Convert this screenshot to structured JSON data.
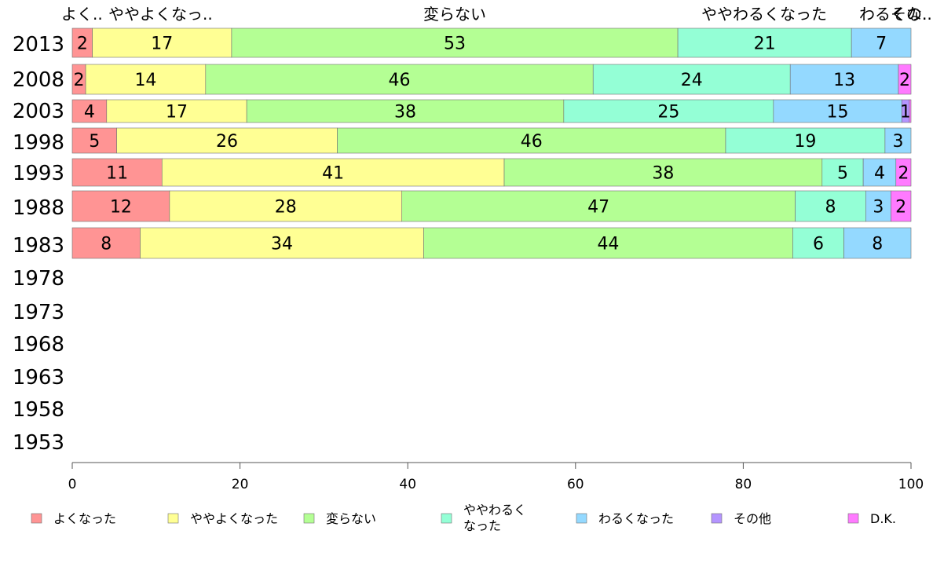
{
  "chart_data": {
    "type": "bar",
    "orientation": "horizontal",
    "stacked": true,
    "years": [
      "2013",
      "2008",
      "2003",
      "1998",
      "1993",
      "1988",
      "1983",
      "1978",
      "1973",
      "1968",
      "1963",
      "1958",
      "1953"
    ],
    "categories": [
      {
        "name": "よくなった",
        "color": "#ff9494"
      },
      {
        "name": "ややよくなった",
        "color": "#ffff94"
      },
      {
        "name": "変らない",
        "color": "#b4ff94"
      },
      {
        "name": "ややわるくなった",
        "color": "#94ffd6"
      },
      {
        "name": "わるくなった",
        "color": "#94d9ff"
      },
      {
        "name": "その他",
        "color": "#b494ff"
      },
      {
        "name": "D.K.",
        "color": "#ff7aff"
      }
    ],
    "legend_labels": [
      "よくなった",
      "ややよくなった",
      "変らない",
      "ややわるく\nなった",
      "わるくなった",
      "その他",
      "D.K."
    ],
    "top_labels": [
      "よく..",
      "ややよくなっ..",
      "変らない",
      "ややわるくなった",
      "わるくな..",
      "その.."
    ],
    "series_by_year": [
      {
        "year": "2013",
        "values": [
          2.4,
          16.6,
          53.2,
          20.7,
          7.1,
          0,
          0
        ]
      },
      {
        "year": "2008",
        "values": [
          1.6,
          14.3,
          46.2,
          23.5,
          12.9,
          0,
          1.5
        ]
      },
      {
        "year": "2003",
        "values": [
          4.1,
          16.7,
          37.8,
          25.0,
          15.3,
          0.9,
          0.2
        ]
      },
      {
        "year": "1998",
        "values": [
          5.3,
          26.3,
          46.3,
          19.0,
          3.1,
          0,
          0
        ]
      },
      {
        "year": "1993",
        "values": [
          10.7,
          40.8,
          37.9,
          4.9,
          3.9,
          0,
          1.8
        ]
      },
      {
        "year": "1988",
        "values": [
          11.6,
          27.7,
          46.9,
          8.4,
          3.0,
          0,
          2.4
        ]
      },
      {
        "year": "1983",
        "values": [
          8.1,
          33.8,
          44.0,
          6.1,
          8.0,
          0,
          0
        ]
      }
    ],
    "x_ticks": [
      0,
      20,
      40,
      60,
      80,
      100
    ],
    "xlim": [
      0,
      100
    ],
    "legend_position": "bottom"
  }
}
